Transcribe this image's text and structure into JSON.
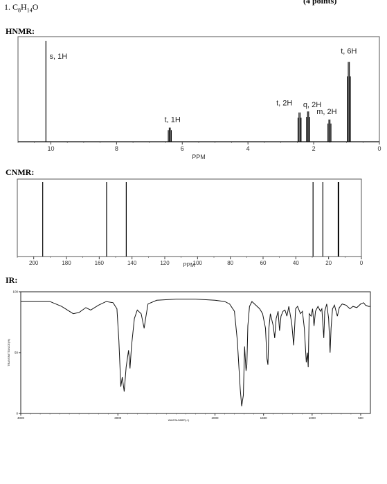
{
  "problem": {
    "label": "1. C",
    "sub8": "8",
    "h": "H",
    "sub14": "14",
    "o": "O",
    "right_fragment": "(4 points)"
  },
  "sections": {
    "hnmr": "HNMR:",
    "cnmr": "CNMR:",
    "ir": "IR:"
  },
  "chart_data": [
    {
      "type": "line",
      "title": "HNMR:",
      "xlabel": "PPM",
      "xlim": [
        11,
        0
      ],
      "x_reversed": true,
      "xticks": [
        10,
        8,
        6,
        4,
        2,
        0
      ],
      "grid": false,
      "peaks": [
        {
          "ppm": 10.15,
          "height": 1.0,
          "label": "s, 1H"
        },
        {
          "ppm": 6.38,
          "height": 0.14,
          "label": "t, 1H"
        },
        {
          "ppm": 2.43,
          "height": 0.29,
          "label": "t, 2H"
        },
        {
          "ppm": 2.17,
          "height": 0.3,
          "label": "q, 2H"
        },
        {
          "ppm": 1.52,
          "height": 0.22,
          "label": "m, 2H"
        },
        {
          "ppm": 0.93,
          "height": 0.79,
          "label": "t, 6H"
        }
      ]
    },
    {
      "type": "bar",
      "title": "CNMR:",
      "xlabel": "PPM",
      "xlim": [
        210,
        0
      ],
      "x_reversed": true,
      "xticks": [
        200,
        180,
        160,
        140,
        120,
        100,
        80,
        60,
        40,
        20,
        0
      ],
      "grid": false,
      "peaks_ppm": [
        194.5,
        155.5,
        143.5,
        29.5,
        23.5,
        14.0
      ]
    },
    {
      "type": "line",
      "title": "IR:",
      "xlabel": "WAVENUMBER(-1)",
      "ylabel": "TRANSMITTANCE(%)",
      "xlim": [
        4000,
        400
      ],
      "ylim": [
        0,
        100
      ],
      "x_reversed": true,
      "xticks": [
        4000,
        3000,
        2000,
        1500,
        1000,
        500
      ],
      "yticks": [
        0,
        50,
        100
      ],
      "grid": false,
      "spectrum": [
        [
          4000,
          92
        ],
        [
          3700,
          92
        ],
        [
          3580,
          88
        ],
        [
          3460,
          82
        ],
        [
          3400,
          83
        ],
        [
          3330,
          87
        ],
        [
          3280,
          85
        ],
        [
          3200,
          89
        ],
        [
          3120,
          92
        ],
        [
          3050,
          91
        ],
        [
          3010,
          86
        ],
        [
          2990,
          60
        ],
        [
          2970,
          22
        ],
        [
          2955,
          30
        ],
        [
          2935,
          18
        ],
        [
          2915,
          38
        ],
        [
          2890,
          52
        ],
        [
          2875,
          37
        ],
        [
          2860,
          55
        ],
        [
          2830,
          78
        ],
        [
          2800,
          85
        ],
        [
          2760,
          82
        ],
        [
          2730,
          70
        ],
        [
          2715,
          78
        ],
        [
          2690,
          90
        ],
        [
          2600,
          93
        ],
        [
          2400,
          94
        ],
        [
          2200,
          94
        ],
        [
          2000,
          93
        ],
        [
          1900,
          92
        ],
        [
          1850,
          90
        ],
        [
          1800,
          84
        ],
        [
          1770,
          60
        ],
        [
          1740,
          20
        ],
        [
          1725,
          6
        ],
        [
          1708,
          15
        ],
        [
          1695,
          55
        ],
        [
          1680,
          35
        ],
        [
          1672,
          40
        ],
        [
          1662,
          72
        ],
        [
          1645,
          88
        ],
        [
          1620,
          92
        ],
        [
          1580,
          89
        ],
        [
          1540,
          86
        ],
        [
          1510,
          82
        ],
        [
          1480,
          70
        ],
        [
          1465,
          45
        ],
        [
          1455,
          40
        ],
        [
          1445,
          70
        ],
        [
          1430,
          82
        ],
        [
          1400,
          72
        ],
        [
          1385,
          62
        ],
        [
          1370,
          78
        ],
        [
          1350,
          84
        ],
        [
          1335,
          68
        ],
        [
          1320,
          80
        ],
        [
          1300,
          84
        ],
        [
          1280,
          85
        ],
        [
          1260,
          80
        ],
        [
          1240,
          88
        ],
        [
          1210,
          74
        ],
        [
          1190,
          56
        ],
        [
          1170,
          86
        ],
        [
          1150,
          88
        ],
        [
          1120,
          82
        ],
        [
          1100,
          84
        ],
        [
          1080,
          70
        ],
        [
          1060,
          42
        ],
        [
          1048,
          50
        ],
        [
          1040,
          38
        ],
        [
          1030,
          82
        ],
        [
          1010,
          80
        ],
        [
          995,
          86
        ],
        [
          980,
          72
        ],
        [
          965,
          84
        ],
        [
          940,
          88
        ],
        [
          915,
          84
        ],
        [
          900,
          86
        ],
        [
          880,
          62
        ],
        [
          870,
          84
        ],
        [
          850,
          90
        ],
        [
          830,
          78
        ],
        [
          815,
          50
        ],
        [
          805,
          70
        ],
        [
          790,
          86
        ],
        [
          770,
          89
        ],
        [
          740,
          80
        ],
        [
          720,
          87
        ],
        [
          690,
          90
        ],
        [
          650,
          89
        ],
        [
          610,
          86
        ],
        [
          580,
          88
        ],
        [
          540,
          87
        ],
        [
          500,
          90
        ],
        [
          470,
          91
        ],
        [
          450,
          89
        ],
        [
          420,
          88
        ],
        [
          400,
          88
        ]
      ]
    }
  ]
}
